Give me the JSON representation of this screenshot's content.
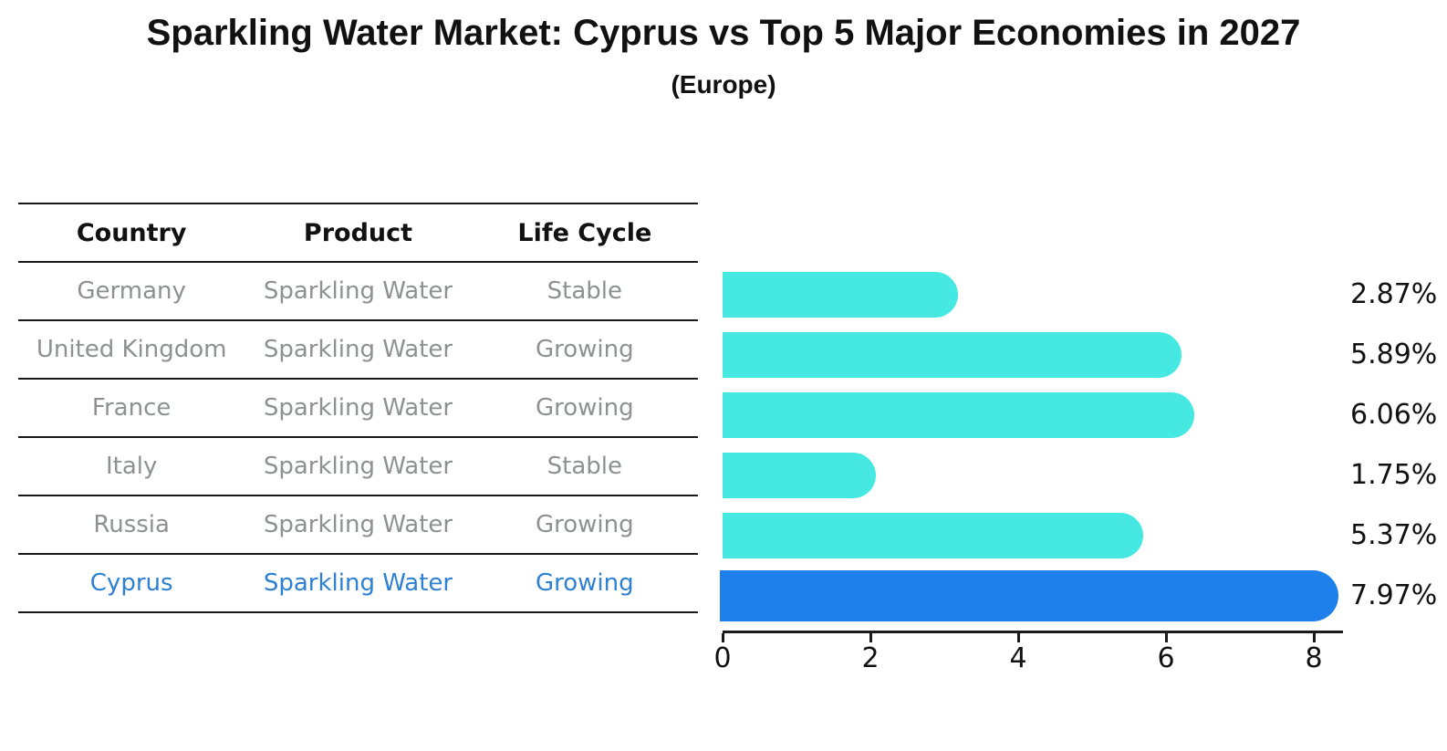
{
  "title": "Sparkling Water Market: Cyprus vs Top 5 Major Economies in 2027",
  "subtitle": "(Europe)",
  "table": {
    "headers": [
      "Country",
      "Product",
      "Life Cycle"
    ],
    "rows": [
      {
        "country": "Germany",
        "product": "Sparkling Water",
        "life_cycle": "Stable",
        "highlighted": false
      },
      {
        "country": "United Kingdom",
        "product": "Sparkling Water",
        "life_cycle": "Growing",
        "highlighted": false
      },
      {
        "country": "France",
        "product": "Sparkling Water",
        "life_cycle": "Growing",
        "highlighted": false
      },
      {
        "country": "Italy",
        "product": "Sparkling Water",
        "life_cycle": "Stable",
        "highlighted": false
      },
      {
        "country": "Russia",
        "product": "Sparkling Water",
        "life_cycle": "Growing",
        "highlighted": false
      },
      {
        "country": "Cyprus",
        "product": "Sparkling Water",
        "life_cycle": "Growing",
        "highlighted": true
      }
    ]
  },
  "chart_data": {
    "type": "bar",
    "orientation": "horizontal",
    "title": "Sparkling Water Market: Cyprus vs Top 5 Major Economies in 2027",
    "subtitle": "(Europe)",
    "categories": [
      "Germany",
      "United Kingdom",
      "France",
      "Italy",
      "Russia",
      "Cyprus"
    ],
    "values": [
      2.87,
      5.89,
      6.06,
      1.75,
      5.37,
      7.97
    ],
    "value_labels": [
      "2.87%",
      "5.89%",
      "6.06%",
      "1.75%",
      "5.37%",
      "7.97%"
    ],
    "x_ticks": [
      0,
      2,
      4,
      6,
      8
    ],
    "xlim": [
      0,
      8.4
    ],
    "grid": false,
    "legend": false,
    "highlight_index": 5,
    "colors": {
      "bar": "#46e8e2",
      "highlight_bar": "#1e80eb",
      "highlight_text": "#2e80d4",
      "text": "#111111",
      "muted_text": "#8e9092",
      "line": "#1a1a1a"
    }
  }
}
